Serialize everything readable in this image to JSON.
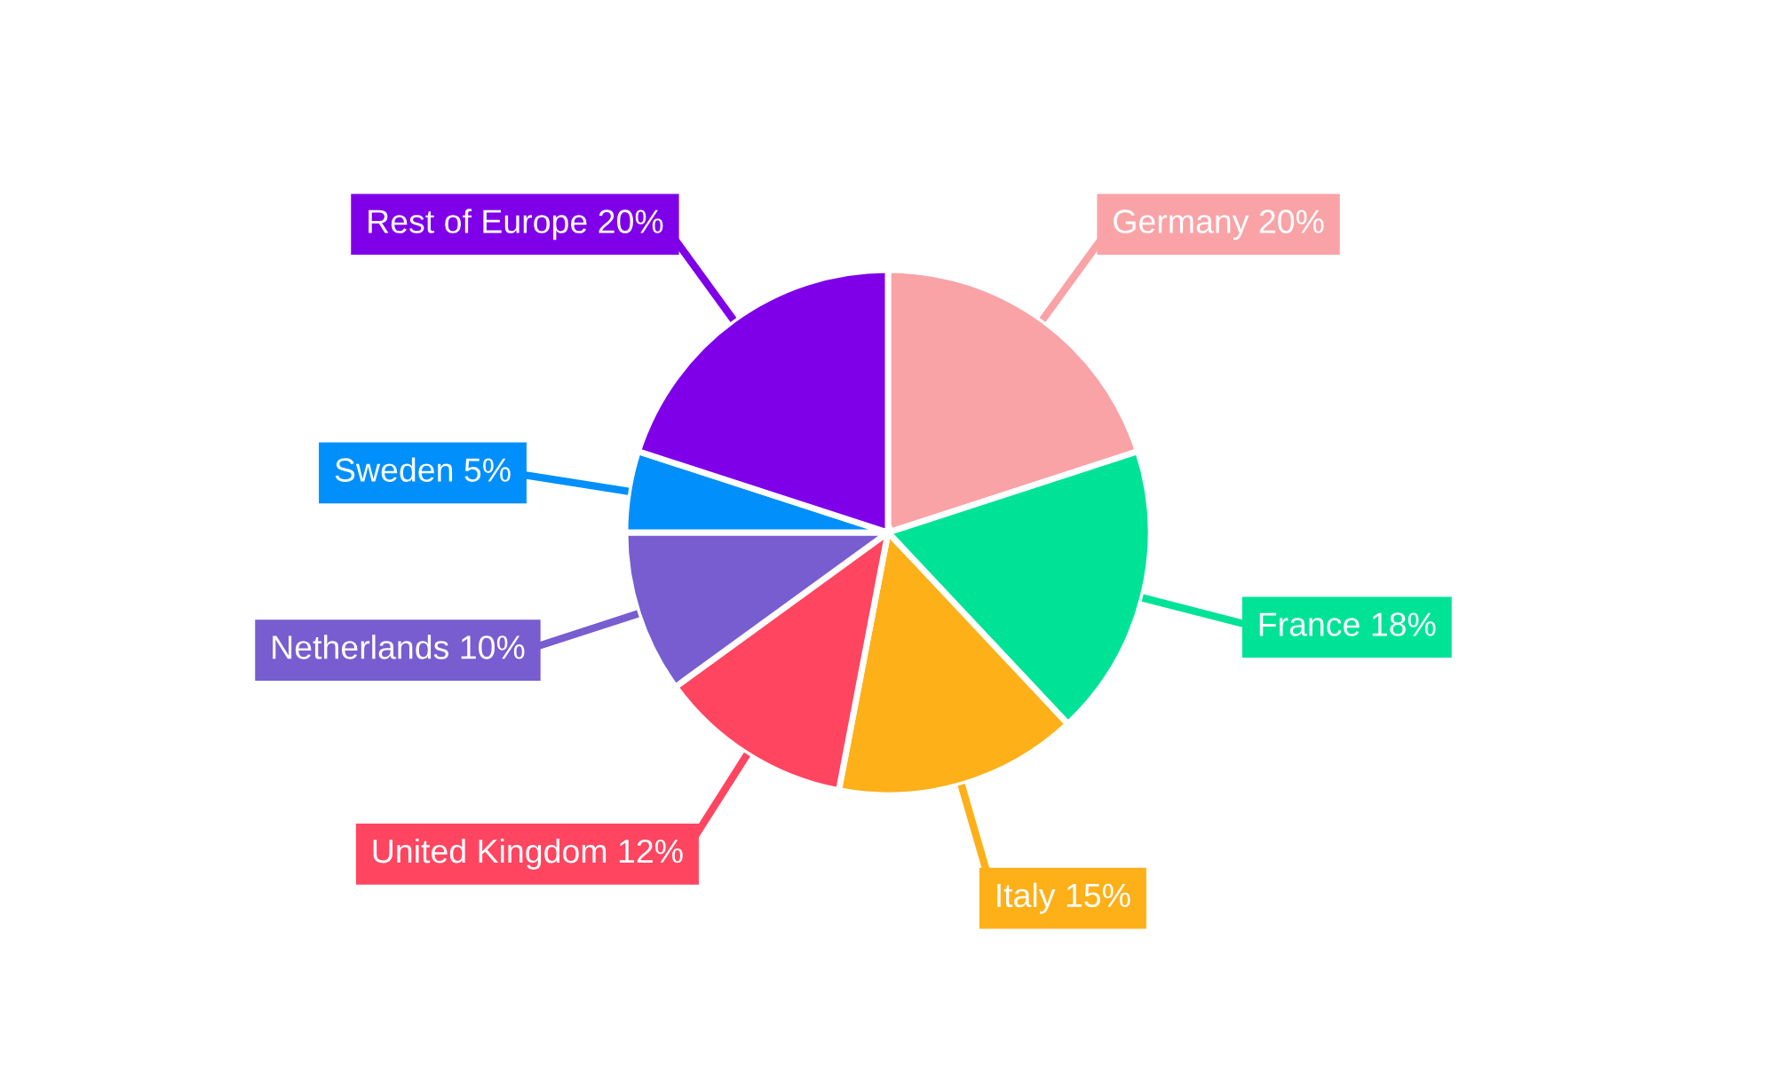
{
  "chart_data": {
    "type": "pie",
    "categories": [
      "Germany",
      "France",
      "Italy",
      "United Kingdom",
      "Netherlands",
      "Sweden",
      "Rest of Europe"
    ],
    "values": [
      20,
      18,
      15,
      12,
      10,
      5,
      20
    ],
    "value_labels": [
      "20%",
      "18%",
      "15%",
      "12%",
      "10%",
      "5%",
      "20%"
    ],
    "colors": [
      "#f9a3a7",
      "#00e396",
      "#feb019",
      "#ff4560",
      "#775dd0",
      "#008ffb",
      "#7f00e8"
    ]
  }
}
